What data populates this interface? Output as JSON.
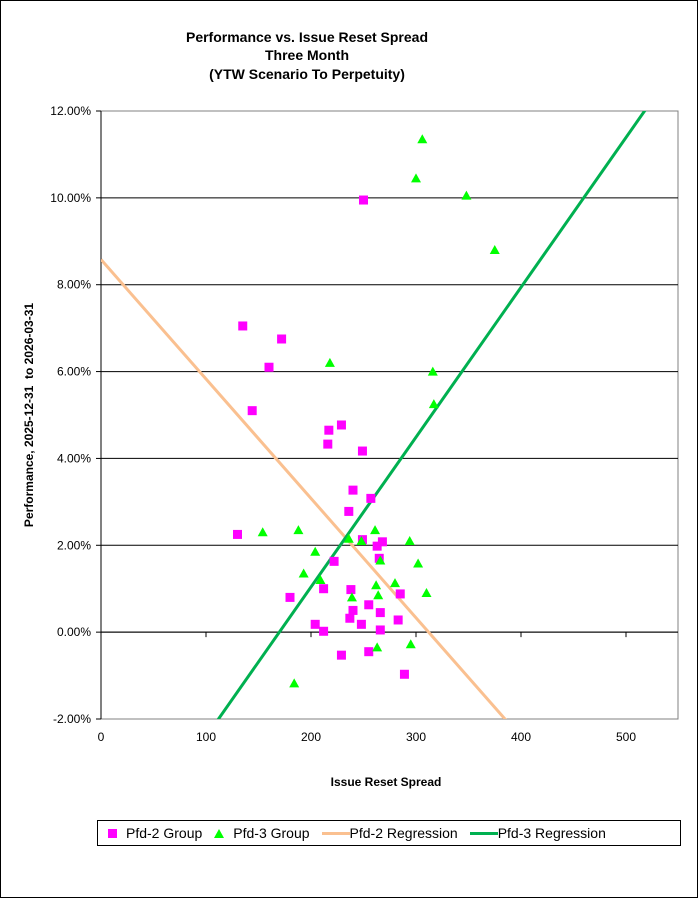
{
  "chart_data": {
    "type": "scatter",
    "title": [
      "Performance vs. Issue Reset Spread",
      "Three Month",
      "(YTW Scenario To Perpetuity)"
    ],
    "xlabel": "Issue Reset Spread",
    "ylabel": "Performance, 2025-12-31  to 2026-03-31",
    "xlim": [
      0,
      550
    ],
    "ylim": [
      -2,
      12
    ],
    "x_ticks": [
      0,
      100,
      200,
      300,
      400,
      500
    ],
    "x_tick_labels": [
      "0",
      "100",
      "200",
      "300",
      "400",
      "500"
    ],
    "y_ticks": [
      -2,
      0,
      2,
      4,
      6,
      8,
      10,
      12
    ],
    "y_tick_labels": [
      "-2.00%",
      "0.00%",
      "2.00%",
      "4.00%",
      "6.00%",
      "8.00%",
      "10.00%",
      "12.00%"
    ],
    "grid": "horizontal",
    "legend_position": "bottom",
    "series": [
      {
        "name": "Pfd-2 Group",
        "kind": "scatter",
        "marker": "square",
        "color": "#ff00ff",
        "points": [
          [
            250,
            9.95
          ],
          [
            135,
            7.05
          ],
          [
            172,
            6.75
          ],
          [
            160,
            6.1
          ],
          [
            144,
            5.1
          ],
          [
            229,
            4.77
          ],
          [
            217,
            4.65
          ],
          [
            216,
            4.33
          ],
          [
            249,
            4.17
          ],
          [
            240,
            3.27
          ],
          [
            257,
            3.08
          ],
          [
            236,
            2.78
          ],
          [
            130,
            2.25
          ],
          [
            249,
            2.13
          ],
          [
            268,
            2.08
          ],
          [
            263,
            1.98
          ],
          [
            265,
            1.7
          ],
          [
            222,
            1.63
          ],
          [
            212,
            1.0
          ],
          [
            238,
            0.98
          ],
          [
            285,
            0.88
          ],
          [
            180,
            0.8
          ],
          [
            255,
            0.63
          ],
          [
            240,
            0.5
          ],
          [
            266,
            0.45
          ],
          [
            237,
            0.32
          ],
          [
            283,
            0.28
          ],
          [
            204,
            0.18
          ],
          [
            248,
            0.18
          ],
          [
            266,
            0.05
          ],
          [
            212,
            0.02
          ],
          [
            255,
            -0.45
          ],
          [
            229,
            -0.53
          ],
          [
            289,
            -0.97
          ]
        ]
      },
      {
        "name": "Pfd-3 Group",
        "kind": "scatter",
        "marker": "triangle",
        "color": "#00ff00",
        "points": [
          [
            306,
            11.35
          ],
          [
            300,
            10.45
          ],
          [
            348,
            10.05
          ],
          [
            375,
            8.8
          ],
          [
            218,
            6.2
          ],
          [
            316,
            6.0
          ],
          [
            317,
            5.25
          ],
          [
            154,
            2.3
          ],
          [
            188,
            2.35
          ],
          [
            261,
            2.35
          ],
          [
            236,
            2.15
          ],
          [
            248,
            2.1
          ],
          [
            294,
            2.1
          ],
          [
            204,
            1.85
          ],
          [
            266,
            1.65
          ],
          [
            302,
            1.58
          ],
          [
            193,
            1.35
          ],
          [
            209,
            1.2
          ],
          [
            280,
            1.13
          ],
          [
            262,
            1.08
          ],
          [
            310,
            0.9
          ],
          [
            264,
            0.85
          ],
          [
            239,
            0.8
          ],
          [
            295,
            -0.28
          ],
          [
            263,
            -0.35
          ],
          [
            184,
            -1.18
          ]
        ]
      },
      {
        "name": "Pfd-2 Regression",
        "kind": "line",
        "color": "#fac090",
        "slope": -0.0275,
        "intercept": 8.58
      },
      {
        "name": "Pfd-3 Regression",
        "kind": "line",
        "color": "#00b050",
        "slope": 0.0345,
        "intercept": -5.86
      }
    ]
  }
}
